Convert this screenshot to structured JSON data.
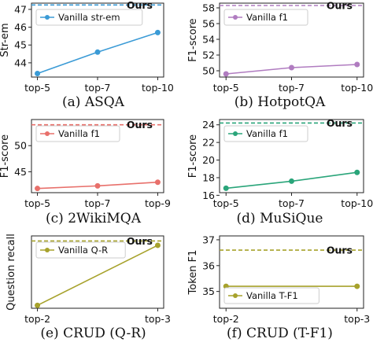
{
  "chart_data": [
    {
      "type": "line",
      "caption": "(a) ASQA",
      "ylabel": "Str-em",
      "categories": [
        "top-5",
        "top-7",
        "top-10"
      ],
      "yticks": [
        44,
        45,
        46,
        47
      ],
      "ylim": [
        43.2,
        47.35
      ],
      "series": [
        {
          "name": "Vanilla str-em",
          "values": [
            43.4,
            44.6,
            45.7
          ],
          "color": "#3b9bd6"
        }
      ],
      "reference": {
        "name": "Ours",
        "value": 47.25,
        "color": "#3b9bd6"
      },
      "legend": "top-left",
      "ours_label_pos": "right"
    },
    {
      "type": "line",
      "caption": "(b) HotpotQA",
      "ylabel": "F1-score",
      "categories": [
        "top-5",
        "top-7",
        "top-10"
      ],
      "yticks": [
        50,
        52,
        54,
        56,
        58
      ],
      "ylim": [
        49.2,
        58.6
      ],
      "series": [
        {
          "name": "Vanilla f1",
          "values": [
            49.6,
            50.4,
            50.8
          ],
          "color": "#b07cc0"
        }
      ],
      "reference": {
        "name": "Ours",
        "value": 58.3,
        "color": "#b07cc0"
      },
      "legend": "top-left",
      "ours_label_pos": "right"
    },
    {
      "type": "line",
      "caption": "(c) 2WikiMQA",
      "ylabel": "F1-score",
      "categories": [
        "top-5",
        "top-7",
        "top-9"
      ],
      "yticks": [
        45,
        50
      ],
      "ylim": [
        41.0,
        55.0
      ],
      "series": [
        {
          "name": "Vanilla f1",
          "values": [
            41.8,
            42.3,
            43.0
          ],
          "color": "#e8706b"
        }
      ],
      "reference": {
        "name": "Ours",
        "value": 54.0,
        "color": "#e8706b"
      },
      "legend": "top-left",
      "ours_label_pos": "right"
    },
    {
      "type": "line",
      "caption": "(d) MuSiQue",
      "ylabel": "F1-score",
      "categories": [
        "top-5",
        "top-7",
        "top-10"
      ],
      "yticks": [
        16,
        18,
        20,
        22,
        24
      ],
      "ylim": [
        16.3,
        24.6
      ],
      "series": [
        {
          "name": "Vanilla f1",
          "values": [
            16.8,
            17.6,
            18.6
          ],
          "color": "#2aa57a"
        }
      ],
      "reference": {
        "name": "Ours",
        "value": 24.2,
        "color": "#2aa57a"
      },
      "legend": "top-left",
      "ours_label_pos": "right"
    },
    {
      "type": "line",
      "caption": "(e) CRUD (Q-R)",
      "ylabel": "Question recall",
      "categories": [
        "top-2",
        "top-3"
      ],
      "yticks": [],
      "ylim": [
        0,
        1.0
      ],
      "series": [
        {
          "name": "Vanilla Q-R",
          "values": [
            0.04,
            0.87
          ],
          "color": "#a7a22c"
        }
      ],
      "reference": {
        "name": "Ours",
        "value": 0.93,
        "color": "#a7a22c"
      },
      "legend": "top-left",
      "ours_label_pos": "right"
    },
    {
      "type": "line",
      "caption": "(f) CRUD (T-F1)",
      "ylabel": "Token F1",
      "categories": [
        "top-2",
        "top-3"
      ],
      "yticks": [
        35,
        36,
        37
      ],
      "ylim": [
        34.35,
        37.15
      ],
      "series": [
        {
          "name": "Vanilla T-F1",
          "values": [
            35.2,
            35.2
          ],
          "color": "#a7a22c"
        }
      ],
      "reference": {
        "name": "Ours",
        "value": 36.6,
        "color": "#a7a22c"
      },
      "legend": "bottom-left",
      "ours_label_pos": "right"
    }
  ]
}
